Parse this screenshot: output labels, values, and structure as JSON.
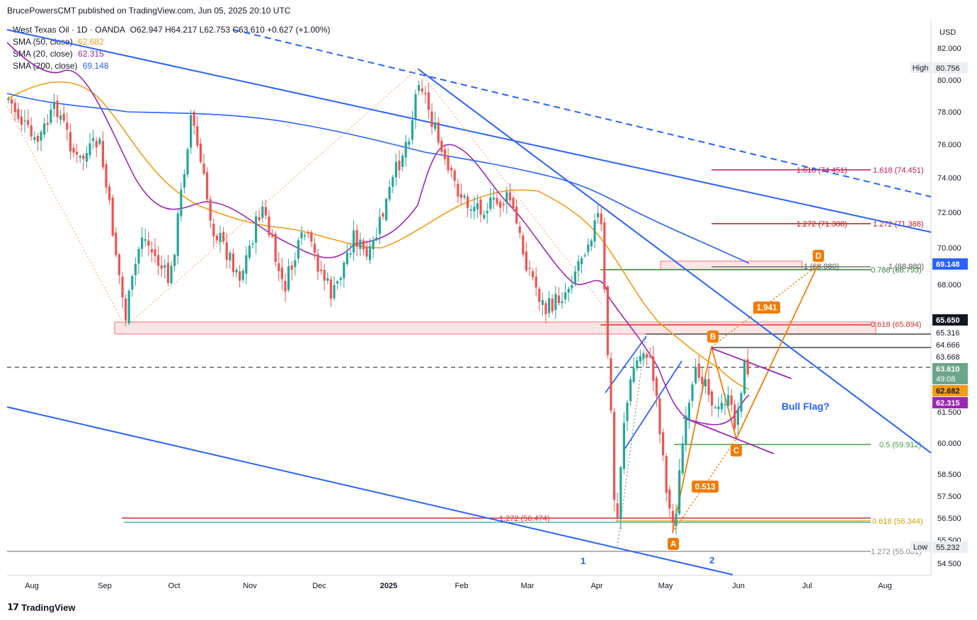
{
  "header": {
    "published": "BrucePowersCMT published on TradingView.com, Jun 05, 2025 20:10 UTC"
  },
  "legend": {
    "symbol": "West Texas Oil · 1D · OANDA",
    "ohlc": "O62.947 H64.217 L62.753 C63.610 +0.627 (+1.00%)",
    "sma50_label": "SMA (50, close)",
    "sma50_value": "62.682",
    "sma20_label": "SMA (20, close)",
    "sma20_value": "62.315",
    "sma200_label": "SMA (200, close)",
    "sma200_value": "69.148"
  },
  "footer": {
    "brand": "TradingView"
  },
  "colors": {
    "sma50": "#f59b14",
    "sma20": "#9c27b0",
    "sma200": "#2962ff",
    "up": "#26a69a",
    "down": "#ef5350",
    "fib": "#d32f2f",
    "orange": "#f57c00"
  },
  "chart_data": {
    "type": "candlestick",
    "title": "West Texas Oil · 1D · OANDA",
    "currency": "USD",
    "x_ticks": [
      "Aug",
      "Sep",
      "Oct",
      "Nov",
      "Dec",
      "2025",
      "Feb",
      "Mar",
      "Apr",
      "May",
      "Jun",
      "Jul",
      "Aug"
    ],
    "y_ticks": [
      "82.000",
      "80.000",
      "78.000",
      "76.000",
      "74.000",
      "72.000",
      "70.000",
      "68.000",
      "61.500",
      "60.000",
      "58.500",
      "57.500",
      "56.500",
      "55.500",
      "54.500"
    ],
    "ylim": [
      54.0,
      83.0
    ],
    "price_tags": [
      {
        "label": "High",
        "value": "80.756",
        "style": "grey"
      },
      {
        "label": "",
        "value": "69.148",
        "style": "blue"
      },
      {
        "label": "",
        "value": "65.650",
        "style": "black"
      },
      {
        "label": "",
        "value": "65.316",
        "style": "plain"
      },
      {
        "label": "",
        "value": "64.666",
        "style": "plain"
      },
      {
        "label": "",
        "value": "63.668",
        "style": "plain"
      },
      {
        "label": "",
        "value": "63.610",
        "sub": "49:08",
        "style": "green"
      },
      {
        "label": "",
        "value": "62.682",
        "style": "orange"
      },
      {
        "label": "",
        "value": "62.315",
        "style": "purple"
      },
      {
        "label": "Low",
        "value": "55.232",
        "style": "grey"
      }
    ],
    "fib_labels": [
      {
        "text": "1.618 (74.451)",
        "value": 74.451,
        "color": "#c2185b"
      },
      {
        "text": "1.618 (74.451)",
        "value": 74.451,
        "color": "#c2185b"
      },
      {
        "text": "1.272 (71.388)",
        "value": 71.388,
        "color": "#b71c1c"
      },
      {
        "text": "1.272 (71.388)",
        "value": 71.388,
        "color": "#b71c1c"
      },
      {
        "text": "1 (68.980)",
        "value": 68.98,
        "color": "#555555"
      },
      {
        "text": "1 (68.980)",
        "value": 68.98,
        "color": "#555555"
      },
      {
        "text": "0.786 (68.793)",
        "value": 68.793,
        "color": "#2e7d32"
      },
      {
        "text": "0.618 (65.894)",
        "value": 65.894,
        "color": "#d32f2f"
      },
      {
        "text": "0.5 (59.912)",
        "value": 59.912,
        "color": "#43a047"
      },
      {
        "text": "1.272 (56.474)",
        "value": 56.474,
        "color": "#d32f2f"
      },
      {
        "text": "0.618 (56.344)",
        "value": 56.344,
        "color": "#c8a300"
      },
      {
        "text": "1.272 (55.081)",
        "value": 55.081,
        "color": "#888888"
      }
    ],
    "annotations": {
      "wave_1": "1",
      "wave_2": "2",
      "point_a": "A",
      "point_b": "B",
      "point_c": "C",
      "point_d": "D",
      "ratio_1": "1.941",
      "ratio_2": "0.513",
      "pattern": "Bull Flag?"
    },
    "series": [
      {
        "name": "SMA (50, close)",
        "last": 62.682
      },
      {
        "name": "SMA (20, close)",
        "last": 62.315
      },
      {
        "name": "SMA (200, close)",
        "last": 69.148
      }
    ],
    "last_close": 63.61
  }
}
